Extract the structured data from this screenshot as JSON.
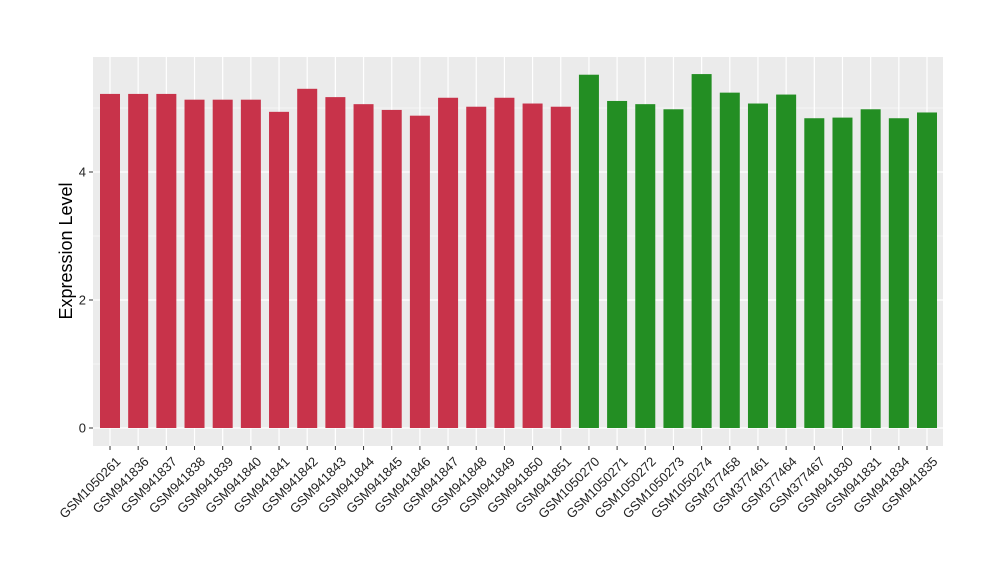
{
  "chart_data": {
    "type": "bar",
    "title": "",
    "xlabel": "",
    "ylabel": "Expression Level",
    "ylim": [
      0,
      5.8
    ],
    "yticks": [
      0,
      2,
      4
    ],
    "grid": true,
    "legend": "none",
    "categories": [
      "GSM1050261",
      "GSM941836",
      "GSM941837",
      "GSM941838",
      "GSM941839",
      "GSM941840",
      "GSM941841",
      "GSM941842",
      "GSM941843",
      "GSM941844",
      "GSM941845",
      "GSM941846",
      "GSM941847",
      "GSM941848",
      "GSM941849",
      "GSM941850",
      "GSM941851",
      "GSM1050270",
      "GSM1050271",
      "GSM1050272",
      "GSM1050273",
      "GSM1050274",
      "GSM377458",
      "GSM377461",
      "GSM377464",
      "GSM377467",
      "GSM941830",
      "GSM941831",
      "GSM941834",
      "GSM941835"
    ],
    "values": [
      5.22,
      5.22,
      5.22,
      5.13,
      5.13,
      5.13,
      4.94,
      5.3,
      5.17,
      5.06,
      4.97,
      4.88,
      5.16,
      5.02,
      5.16,
      5.07,
      5.02,
      5.52,
      5.11,
      5.06,
      4.98,
      5.53,
      5.24,
      5.07,
      5.21,
      4.84,
      4.85,
      4.98,
      4.84,
      4.93
    ],
    "bar_colors": [
      "#C8334A",
      "#C8334A",
      "#C8334A",
      "#C8334A",
      "#C8334A",
      "#C8334A",
      "#C8334A",
      "#C8334A",
      "#C8334A",
      "#C8334A",
      "#C8334A",
      "#C8334A",
      "#C8334A",
      "#C8334A",
      "#C8334A",
      "#C8334A",
      "#C8334A",
      "#238E23",
      "#238E23",
      "#238E23",
      "#238E23",
      "#238E23",
      "#238E23",
      "#238E23",
      "#238E23",
      "#238E23",
      "#238E23",
      "#238E23",
      "#238E23",
      "#238E23"
    ],
    "panel_background": "#EBEBEB",
    "gridline_color": "#FFFFFF"
  }
}
